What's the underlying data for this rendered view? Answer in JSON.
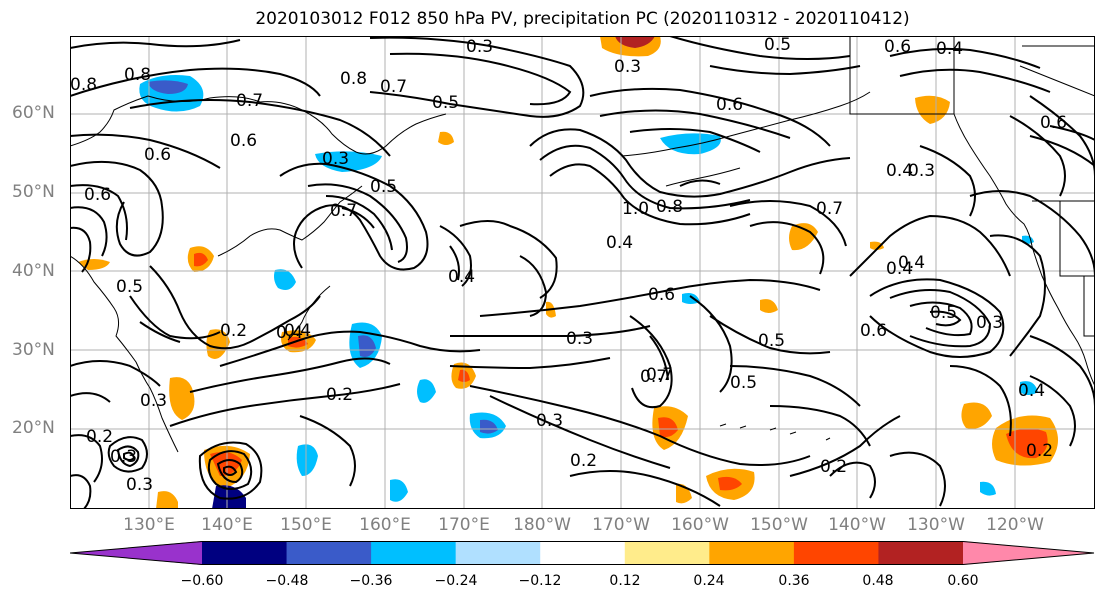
{
  "title": "2020103012 F012 850 hPa PV, precipitation PC (2020110312 - 2020110412)",
  "latitude_labels": [
    "60°N",
    "50°N",
    "40°N",
    "30°N",
    "20°N"
  ],
  "longitude_labels": [
    "130°E",
    "140°E",
    "150°E",
    "160°E",
    "170°E",
    "180°W",
    "170°W",
    "160°W",
    "150°W",
    "140°W",
    "130°W",
    "120°W"
  ],
  "colorbar": {
    "tick_labels": [
      "−0.60",
      "−0.48",
      "−0.36",
      "−0.24",
      "−0.12",
      "0.12",
      "0.24",
      "0.36",
      "0.48",
      "0.60"
    ],
    "colors": [
      "#9932cc",
      "#000080",
      "#3a5bc9",
      "#00bfff",
      "#b0e0ff",
      "#ffffff",
      "#ffec8b",
      "#ffa500",
      "#ff4500",
      "#b22222",
      "#ff88aa"
    ]
  },
  "contour_labels": [
    "0.7",
    "0.2",
    "0.3",
    "0.5",
    "0.6",
    "0.8",
    "0.7",
    "0.5",
    "0.3",
    "0.4",
    "0.5",
    "0.6",
    "0.4",
    "0.3",
    "0.8",
    "0.7",
    "0.6",
    "0.6",
    "0.3",
    "0.5",
    "0.7",
    "0.4",
    "1.0",
    "0.8",
    "0.6",
    "0.7",
    "0.4",
    "0.4",
    "0.6",
    "0.4",
    "0.3",
    "0.6",
    "0.3",
    "0.5",
    "0.5",
    "0.3",
    "0.2",
    "0.4",
    "0.2",
    "0.3",
    "0.7",
    "0.4",
    "0.3",
    "0.2",
    "0.3",
    "0.2",
    "0.5",
    "0.2",
    "0.6",
    "0.8",
    "0.4"
  ]
}
